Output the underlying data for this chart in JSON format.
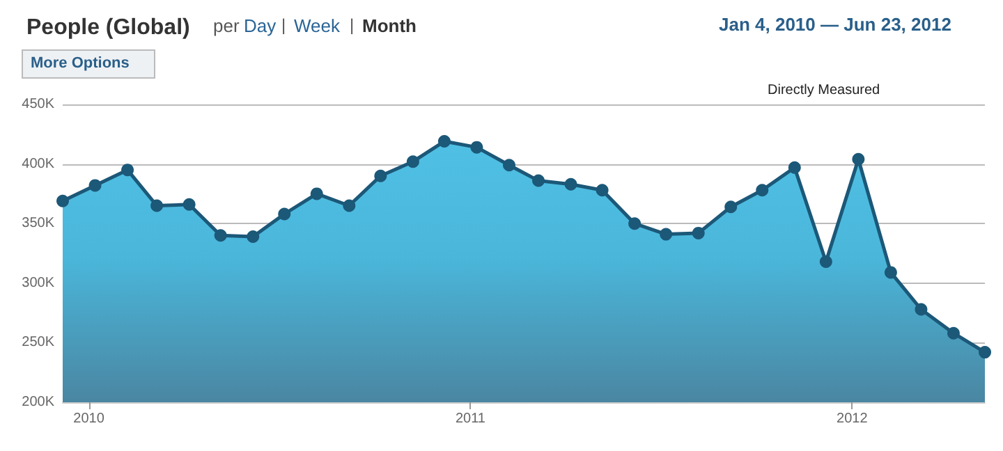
{
  "chart_data": {
    "type": "area",
    "title": "People (Global)",
    "annotations": [
      "per",
      "Day",
      "|",
      "Week",
      "|",
      "Month",
      "Jan 4, 2010 — Jun 23, 2012",
      "More Options",
      "Directly Measured"
    ],
    "x": [
      "2009-12-07",
      "2010-01-07",
      "2010-02-07",
      "2010-03-07",
      "2010-04-07",
      "2010-05-07",
      "2010-06-07",
      "2010-07-07",
      "2010-08-07",
      "2010-09-07",
      "2010-10-07",
      "2010-11-07",
      "2010-12-07",
      "2011-01-07",
      "2011-02-07",
      "2011-03-07",
      "2011-04-07",
      "2011-05-07",
      "2011-06-07",
      "2011-07-07",
      "2011-08-07",
      "2011-09-07",
      "2011-10-07",
      "2011-11-07",
      "2011-12-07",
      "2012-01-07",
      "2012-02-07",
      "2012-03-07",
      "2012-04-07",
      "2012-05-07"
    ],
    "series": [
      {
        "color": "#1c5878",
        "values": [
          369000,
          382000,
          395000,
          365000,
          366000,
          340000,
          339000,
          358000,
          375000,
          365000,
          390000,
          402000,
          419000,
          414000,
          399000,
          386000,
          383000,
          378000,
          350000,
          341000,
          342000,
          364000,
          378000,
          397000,
          318000,
          404000,
          309000,
          278000,
          258000,
          242000
        ]
      }
    ],
    "xlim": [
      "2009-12-07",
      "2012-05-07"
    ],
    "xticks": [
      {
        "value": "2010-01-01",
        "label": "2010"
      },
      {
        "value": "2011-01-01",
        "label": "2011"
      },
      {
        "value": "2012-01-01",
        "label": "2012"
      }
    ],
    "ylim": [
      200000,
      450000
    ],
    "yticks": [
      {
        "value": 200000,
        "label": "200K"
      },
      {
        "value": 250000,
        "label": "250K"
      },
      {
        "value": 300000,
        "label": "300K"
      },
      {
        "value": 350000,
        "label": "350K"
      },
      {
        "value": 400000,
        "label": "400K"
      },
      {
        "value": 450000,
        "label": "450K"
      }
    ],
    "grid": "y",
    "marker": "circle",
    "line_style": "solid"
  }
}
